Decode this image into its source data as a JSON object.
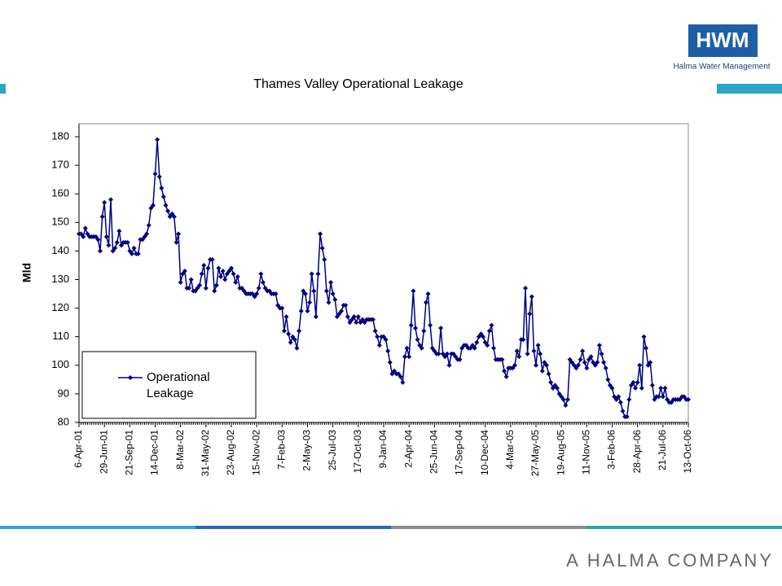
{
  "brand": {
    "logo": "HWM",
    "tagline": "Halma Water Management",
    "footer": "A HALMA COMPANY"
  },
  "chart_data": {
    "type": "line",
    "title": "Thames Valley Operational Leakage",
    "y_label": "Mld",
    "categories": [
      "6-Apr-01",
      null,
      null,
      null,
      null,
      null,
      null,
      null,
      null,
      null,
      null,
      null,
      "29-Jun-01",
      null,
      null,
      null,
      null,
      null,
      null,
      null,
      null,
      null,
      null,
      null,
      "21-Sep-01",
      null,
      null,
      null,
      null,
      null,
      null,
      null,
      null,
      null,
      null,
      null,
      "14-Dec-01",
      null,
      null,
      null,
      null,
      null,
      null,
      null,
      null,
      null,
      null,
      null,
      "8-Mar-02",
      null,
      null,
      null,
      null,
      null,
      null,
      null,
      null,
      null,
      null,
      null,
      "31-May-02",
      null,
      null,
      null,
      null,
      null,
      null,
      null,
      null,
      null,
      null,
      null,
      "23-Aug-02",
      null,
      null,
      null,
      null,
      null,
      null,
      null,
      null,
      null,
      null,
      null,
      "15-Nov-02",
      null,
      null,
      null,
      null,
      null,
      null,
      null,
      null,
      null,
      null,
      null,
      "7-Feb-03",
      null,
      null,
      null,
      null,
      null,
      null,
      null,
      null,
      null,
      null,
      null,
      "2-May-03",
      null,
      null,
      null,
      null,
      null,
      null,
      null,
      null,
      null,
      null,
      null,
      "25-Jul-03",
      null,
      null,
      null,
      null,
      null,
      null,
      null,
      null,
      null,
      null,
      null,
      "17-Oct-03",
      null,
      null,
      null,
      null,
      null,
      null,
      null,
      null,
      null,
      null,
      null,
      "9-Jan-04",
      null,
      null,
      null,
      null,
      null,
      null,
      null,
      null,
      null,
      null,
      null,
      "2-Apr-04",
      null,
      null,
      null,
      null,
      null,
      null,
      null,
      null,
      null,
      null,
      null,
      "25-Jun-04",
      null,
      null,
      null,
      null,
      null,
      null,
      null,
      null,
      null,
      null,
      null,
      "17-Sep-04",
      null,
      null,
      null,
      null,
      null,
      null,
      null,
      null,
      null,
      null,
      null,
      "10-Dec-04",
      null,
      null,
      null,
      null,
      null,
      null,
      null,
      null,
      null,
      null,
      null,
      "4-Mar-05",
      null,
      null,
      null,
      null,
      null,
      null,
      null,
      null,
      null,
      null,
      null,
      "27-May-05",
      null,
      null,
      null,
      null,
      null,
      null,
      null,
      null,
      null,
      null,
      null,
      "19-Aug-05",
      null,
      null,
      null,
      null,
      null,
      null,
      null,
      null,
      null,
      null,
      null,
      "11-Nov-05",
      null,
      null,
      null,
      null,
      null,
      null,
      null,
      null,
      null,
      null,
      null,
      "3-Feb-06",
      null,
      null,
      null,
      null,
      null,
      null,
      null,
      null,
      null,
      null,
      null,
      "28-Apr-06",
      null,
      null,
      null,
      null,
      null,
      null,
      null,
      null,
      null,
      null,
      null,
      "21-Jul-06",
      null,
      null,
      null,
      null,
      null,
      null,
      null,
      null,
      null,
      null,
      null,
      "13-Oct-06"
    ],
    "series": [
      {
        "name": "Operational Leakage",
        "color": "#000080",
        "values": [
          146,
          146,
          145,
          148,
          146,
          145,
          145,
          145,
          145,
          144,
          140,
          152,
          157,
          145,
          142,
          158,
          140,
          141,
          143,
          147,
          142,
          143,
          143,
          143,
          140,
          139,
          141,
          139,
          139,
          144,
          144,
          145,
          146,
          149,
          155,
          156,
          167,
          179,
          166,
          162,
          159,
          156,
          154,
          152,
          153,
          152,
          143,
          146,
          129,
          132,
          133,
          127,
          127,
          130,
          126,
          126,
          127,
          128,
          132,
          135,
          127,
          134,
          137,
          137,
          126,
          128,
          134,
          131,
          133,
          130,
          132,
          133,
          134,
          132,
          129,
          131,
          127,
          127,
          126,
          125,
          125,
          125,
          125,
          124,
          125,
          127,
          132,
          129,
          127,
          126,
          126,
          125,
          125,
          125,
          121,
          120,
          120,
          112,
          117,
          111,
          108,
          110,
          109,
          106,
          112,
          119,
          126,
          125,
          119,
          122,
          132,
          126,
          117,
          132,
          146,
          141,
          137,
          126,
          122,
          129,
          125,
          123,
          117,
          118,
          119,
          121,
          121,
          117,
          115,
          116,
          117,
          115,
          117,
          115,
          116,
          115,
          116,
          116,
          116,
          116,
          112,
          110,
          107,
          110,
          110,
          109,
          105,
          101,
          97,
          98,
          97,
          97,
          96,
          94,
          103,
          106,
          103,
          114,
          126,
          113,
          109,
          107,
          106,
          112,
          122,
          125,
          114,
          106,
          105,
          104,
          104,
          113,
          104,
          103,
          104,
          100,
          104,
          104,
          103,
          102,
          102,
          106,
          107,
          107,
          106,
          106,
          107,
          106,
          108,
          110,
          111,
          110,
          108,
          107,
          112,
          114,
          106,
          102,
          102,
          102,
          102,
          98,
          96,
          99,
          99,
          99,
          100,
          105,
          103,
          109,
          109,
          127,
          104,
          118,
          124,
          105,
          100,
          107,
          104,
          98,
          101,
          100,
          97,
          94,
          92,
          93,
          92,
          90,
          89,
          88,
          86,
          88,
          102,
          101,
          100,
          99,
          100,
          102,
          105,
          101,
          99,
          102,
          103,
          101,
          100,
          101,
          107,
          104,
          101,
          99,
          95,
          93,
          92,
          89,
          88,
          89,
          87,
          84,
          82,
          82,
          88,
          93,
          94,
          92,
          94,
          100,
          92,
          110,
          106,
          100,
          101,
          93,
          88,
          89,
          89,
          92,
          89,
          92,
          88,
          87,
          87,
          88,
          88,
          88,
          88,
          89,
          89,
          88,
          88
        ]
      }
    ],
    "ylim": [
      80,
      180
    ],
    "yticks": [
      80,
      90,
      100,
      110,
      120,
      130,
      140,
      150,
      160,
      170,
      180
    ],
    "grid": false,
    "legend": "lower left"
  }
}
